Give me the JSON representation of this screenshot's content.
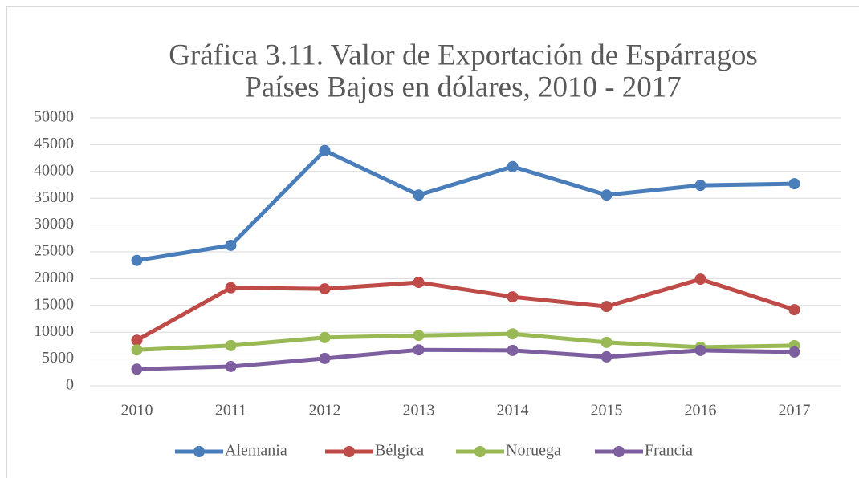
{
  "chart_data": {
    "type": "line",
    "title": [
      "Gráfica 3.11. Valor de Exportación de Espárragos",
      "Países Bajos en dólares, 2010 - 2017"
    ],
    "categories": [
      "2010",
      "2011",
      "2012",
      "2013",
      "2014",
      "2015",
      "2016",
      "2017"
    ],
    "series": [
      {
        "name": "Alemania",
        "color": "#4a7ebb",
        "values": [
          23400,
          26200,
          43900,
          35600,
          40900,
          35600,
          37400,
          37700
        ]
      },
      {
        "name": "Bélgica",
        "color": "#be4b48",
        "values": [
          8500,
          18300,
          18100,
          19300,
          16600,
          14800,
          19900,
          14200
        ]
      },
      {
        "name": "Noruega",
        "color": "#98b954",
        "values": [
          6700,
          7500,
          9000,
          9400,
          9700,
          8100,
          7200,
          7500
        ]
      },
      {
        "name": "Francia",
        "color": "#7d5fa0",
        "values": [
          3100,
          3600,
          5100,
          6700,
          6600,
          5400,
          6600,
          6300
        ]
      }
    ],
    "ylim": [
      0,
      50000
    ],
    "yticks": [
      0,
      5000,
      10000,
      15000,
      20000,
      25000,
      30000,
      35000,
      40000,
      45000,
      50000
    ],
    "grid": true,
    "legend": "bottom"
  }
}
